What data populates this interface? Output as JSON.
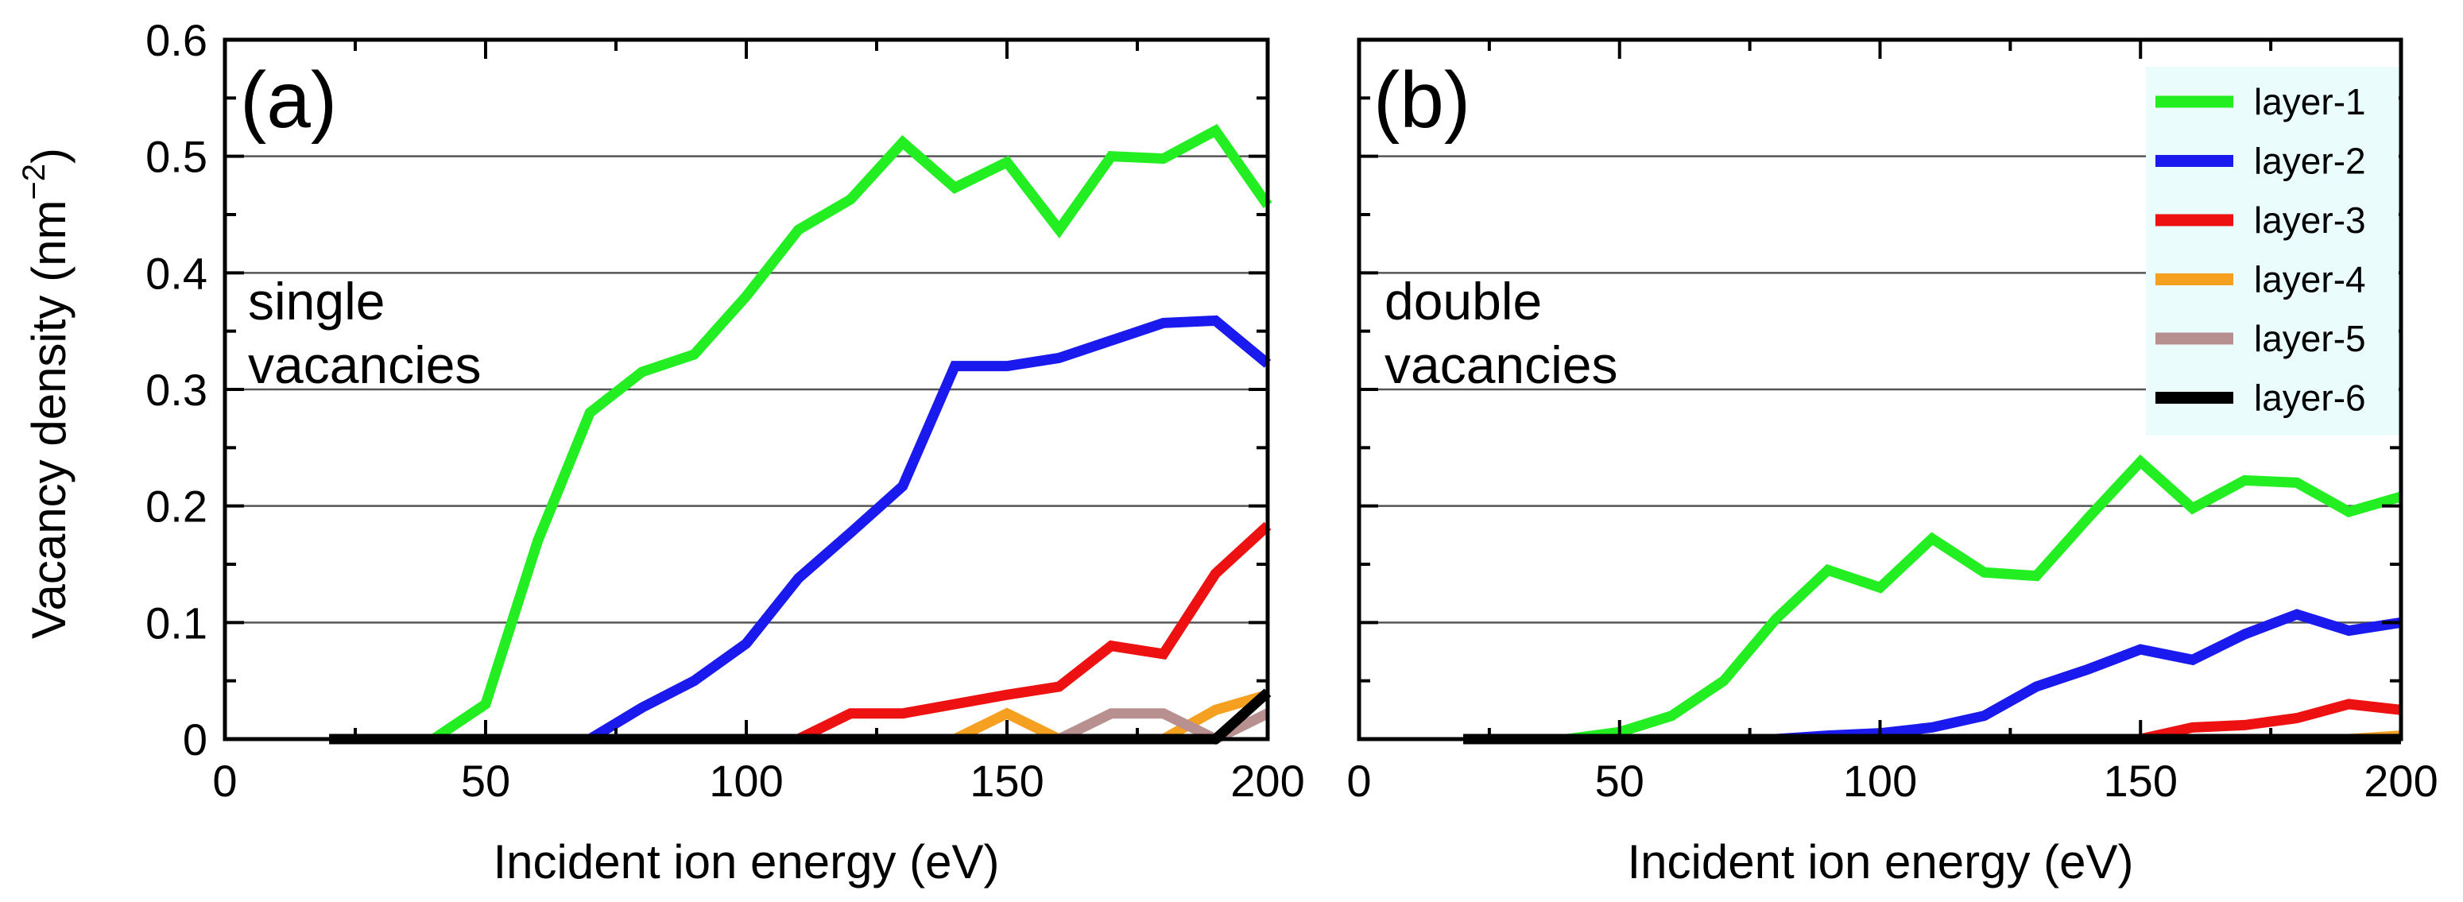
{
  "y_axis_label": "Vacancy density (nm⁻²)",
  "y_axis_label_base": "Vacancy density (nm",
  "y_axis_label_sup": "−2",
  "y_axis_label_close": ")",
  "x_axis_label": "Incident ion energy (eV)",
  "legend_title": "",
  "colors": {
    "layer-1": "#22ee22",
    "layer-2": "#1a1aee",
    "layer-3": "#ee1111",
    "layer-4": "#f5a020",
    "layer-5": "#b89090",
    "layer-6": "#000000",
    "legend_bg": "#eafcfc",
    "grid": "#555555"
  },
  "chart_data": [
    {
      "type": "line",
      "panel_label": "(a)",
      "annotation_line1": "single",
      "annotation_line2": "vacancies",
      "xlabel": "Incident ion energy (eV)",
      "ylabel": "Vacancy density (nm^-2)",
      "xlim": [
        0,
        200
      ],
      "ylim": [
        0,
        0.6
      ],
      "x_ticks": [
        "0",
        "50",
        "100",
        "150",
        "200"
      ],
      "y_ticks": [
        "0",
        "0.1",
        "0.2",
        "0.3",
        "0.4",
        "0.5",
        "0.6"
      ],
      "grid": "horizontal",
      "x": [
        20,
        30,
        40,
        50,
        60,
        70,
        80,
        90,
        100,
        110,
        120,
        130,
        140,
        150,
        160,
        170,
        180,
        190,
        200
      ],
      "series": [
        {
          "name": "layer-1",
          "values": [
            0,
            0,
            0,
            0.03,
            0.17,
            0.28,
            0.315,
            0.33,
            0.38,
            0.437,
            0.463,
            0.512,
            0.473,
            0.495,
            0.437,
            0.5,
            0.498,
            0.522,
            0.458
          ]
        },
        {
          "name": "layer-2",
          "values": [
            0,
            0,
            0,
            0,
            0,
            0,
            0.027,
            0.05,
            0.082,
            0.138,
            0.177,
            0.217,
            0.32,
            0.32,
            0.327,
            0.342,
            0.357,
            0.359,
            0.322
          ]
        },
        {
          "name": "layer-3",
          "values": [
            0,
            0,
            0,
            0,
            0,
            0,
            0,
            0,
            0,
            0,
            0.022,
            0.022,
            0.03,
            0.038,
            0.045,
            0.08,
            0.073,
            0.142,
            0.183
          ]
        },
        {
          "name": "layer-4",
          "values": [
            0,
            0,
            0,
            0,
            0,
            0,
            0,
            0,
            0,
            0,
            0,
            0,
            0,
            0.022,
            0,
            0,
            0,
            0.025,
            0.038
          ]
        },
        {
          "name": "layer-5",
          "values": [
            0,
            0,
            0,
            0,
            0,
            0,
            0,
            0,
            0,
            0,
            0,
            0,
            0,
            0,
            0,
            0.022,
            0.022,
            0,
            0.022
          ]
        },
        {
          "name": "layer-6",
          "values": [
            0,
            0,
            0,
            0,
            0,
            0,
            0,
            0,
            0,
            0,
            0,
            0,
            0,
            0,
            0,
            0,
            0,
            0,
            0.04
          ]
        }
      ]
    },
    {
      "type": "line",
      "panel_label": "(b)",
      "annotation_line1": "double",
      "annotation_line2": "vacancies",
      "xlabel": "Incident ion energy (eV)",
      "ylabel": "",
      "xlim": [
        0,
        200
      ],
      "ylim": [
        0,
        0.6
      ],
      "x_ticks": [
        "0",
        "50",
        "100",
        "150",
        "200"
      ],
      "y_ticks": [],
      "grid": "horizontal",
      "legend_position": "top-right",
      "x": [
        20,
        30,
        40,
        50,
        60,
        70,
        80,
        90,
        100,
        110,
        120,
        130,
        140,
        150,
        160,
        170,
        180,
        190,
        200
      ],
      "series": [
        {
          "name": "layer-1",
          "values": [
            0,
            0,
            0,
            0.006,
            0.02,
            0.05,
            0.103,
            0.145,
            0.13,
            0.172,
            0.143,
            0.14,
            0.19,
            0.238,
            0.198,
            0.222,
            0.22,
            0.195,
            0.208
          ]
        },
        {
          "name": "layer-2",
          "values": [
            0,
            0,
            0,
            0,
            0,
            0,
            0,
            0.003,
            0.005,
            0.01,
            0.02,
            0.045,
            0.06,
            0.077,
            0.068,
            0.09,
            0.107,
            0.093,
            0.1
          ]
        },
        {
          "name": "layer-3",
          "values": [
            0,
            0,
            0,
            0,
            0,
            0,
            0,
            0,
            0,
            0,
            0,
            0,
            0,
            0,
            0.01,
            0.012,
            0.018,
            0.03,
            0.025
          ]
        },
        {
          "name": "layer-4",
          "values": [
            0,
            0,
            0,
            0,
            0,
            0,
            0,
            0,
            0,
            0,
            0,
            0,
            0,
            0,
            0,
            0,
            0,
            0,
            0.003
          ]
        },
        {
          "name": "layer-5",
          "values": [
            0,
            0,
            0,
            0,
            0,
            0,
            0,
            0,
            0,
            0,
            0,
            0,
            0,
            0,
            0,
            0,
            0,
            0,
            0
          ]
        },
        {
          "name": "layer-6",
          "values": [
            0,
            0,
            0,
            0,
            0,
            0,
            0,
            0,
            0,
            0,
            0,
            0,
            0,
            0,
            0,
            0,
            0,
            0,
            0
          ]
        }
      ]
    }
  ]
}
